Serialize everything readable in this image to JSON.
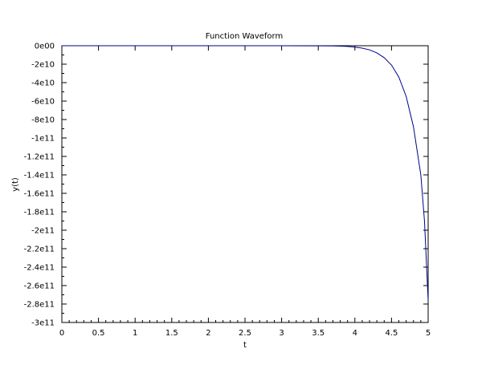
{
  "chart_data": {
    "type": "line",
    "title": "Function Waveform",
    "xlabel": "t",
    "ylabel": "y(t)",
    "xlim": [
      0,
      5
    ],
    "ylim": [
      -300000000000,
      0
    ],
    "grid": false,
    "legend": "none",
    "x_ticks": [
      {
        "value": 0,
        "label": "0"
      },
      {
        "value": 0.5,
        "label": "0.5"
      },
      {
        "value": 1,
        "label": "1"
      },
      {
        "value": 1.5,
        "label": "1.5"
      },
      {
        "value": 2,
        "label": "2"
      },
      {
        "value": 2.5,
        "label": "2.5"
      },
      {
        "value": 3,
        "label": "3"
      },
      {
        "value": 3.5,
        "label": "3.5"
      },
      {
        "value": 4,
        "label": "4"
      },
      {
        "value": 4.5,
        "label": "4.5"
      },
      {
        "value": 5,
        "label": "5"
      }
    ],
    "y_ticks": [
      {
        "value": 0,
        "label": "0e00"
      },
      {
        "value": -20000000000,
        "label": "-2e10"
      },
      {
        "value": -40000000000,
        "label": "-4e10"
      },
      {
        "value": -60000000000,
        "label": "-6e10"
      },
      {
        "value": -80000000000,
        "label": "-8e10"
      },
      {
        "value": -100000000000,
        "label": "-1e11"
      },
      {
        "value": -120000000000,
        "label": "-1.2e11"
      },
      {
        "value": -140000000000,
        "label": "-1.4e11"
      },
      {
        "value": -160000000000,
        "label": "-1.6e11"
      },
      {
        "value": -180000000000,
        "label": "-1.8e11"
      },
      {
        "value": -200000000000,
        "label": "-2e11"
      },
      {
        "value": -220000000000,
        "label": "-2.2e11"
      },
      {
        "value": -240000000000,
        "label": "-2.4e11"
      },
      {
        "value": -260000000000,
        "label": "-2.6e11"
      },
      {
        "value": -280000000000,
        "label": "-2.8e11"
      },
      {
        "value": -300000000000,
        "label": "-3e11"
      }
    ],
    "series": [
      {
        "color": "#00008b",
        "x": [
          0,
          0.5,
          1,
          1.5,
          2,
          2.5,
          3,
          3.5,
          3.7,
          3.8,
          3.9,
          4.0,
          4.1,
          4.2,
          4.3,
          4.4,
          4.5,
          4.6,
          4.7,
          4.8,
          4.9,
          4.95,
          5.0
        ],
        "y": [
          0,
          0,
          0,
          0,
          0,
          0,
          0,
          -100000000,
          -200000000,
          -400000000,
          -800000000,
          -1500000000,
          -2600000000,
          -4500000000,
          -7800000000,
          -13000000000,
          -21000000000,
          -34000000000,
          -55000000000,
          -88000000000,
          -140000000000,
          -190000000000,
          -276000000000
        ]
      }
    ]
  }
}
